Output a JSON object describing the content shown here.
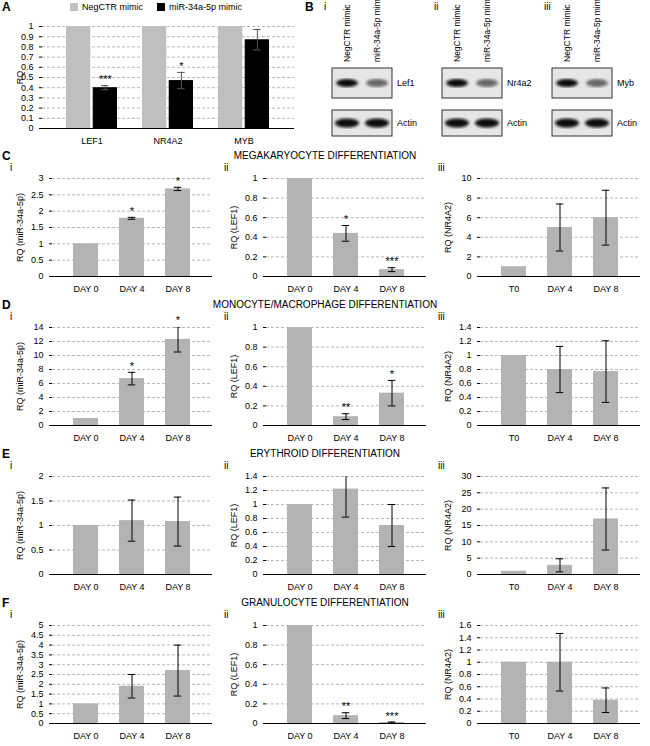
{
  "chart_data": {
    "type": "bar",
    "panel": "A",
    "categories": [
      "LEF1",
      "NR4A2",
      "MYB"
    ],
    "series": [
      {
        "name": "NegCTR mimic",
        "color": "#bfbfbf",
        "values": [
          1,
          1,
          1
        ],
        "errors": [
          null,
          null,
          null
        ],
        "significance": [
          null,
          null,
          null
        ]
      },
      {
        "name": "miR-34a-5p mimic",
        "color": "#000000",
        "values": [
          0.4,
          0.47,
          0.87
        ],
        "errors": [
          0.02,
          0.08,
          0.1
        ],
        "significance": [
          "***",
          "*",
          null
        ]
      }
    ],
    "ylabel": "RQ",
    "ylim": [
      0,
      1
    ],
    "yticks": [
      0,
      0.1,
      0.2,
      0.3,
      0.4,
      0.5,
      0.6,
      0.7,
      0.8,
      0.9,
      1
    ],
    "grid": true,
    "legend": "top"
  },
  "blots": {
    "panel": "B",
    "lanes": [
      "NegCTR mimic",
      "miR-34a-5p mimic"
    ],
    "panels": [
      {
        "panel": "i",
        "target": "Lef1",
        "control": "Actin"
      },
      {
        "panel": "ii",
        "target": "Nr4a2",
        "control": "Actin"
      },
      {
        "panel": "iii",
        "target": "Myb",
        "control": "Actin"
      }
    ]
  },
  "sections": [
    {
      "panel": "C",
      "title": "MEGAKARYOCYTE DIFFERENTIATION",
      "charts": [
        {
          "type": "bar",
          "panel": "i",
          "categories": [
            "DAY 0",
            "DAY 4",
            "DAY 8"
          ],
          "values": [
            1,
            1.78,
            2.68
          ],
          "errors": [
            null,
            0.03,
            0.05
          ],
          "significance": [
            null,
            "*",
            "*"
          ],
          "ylabel": "RQ (miR-34a-5p)",
          "ylim": [
            0,
            3
          ],
          "yticks": [
            0,
            0.5,
            1,
            1.5,
            2,
            2.5,
            3
          ],
          "grid": true,
          "color": "#b3b3b3"
        },
        {
          "type": "bar",
          "panel": "ii",
          "categories": [
            "DAY 0",
            "DAY 4",
            "DAY 8"
          ],
          "values": [
            1,
            0.44,
            0.07
          ],
          "errors": [
            null,
            0.08,
            0.02
          ],
          "significance": [
            null,
            "*",
            "***"
          ],
          "ylabel": "RQ (LEF1)",
          "ylim": [
            0,
            1
          ],
          "yticks": [
            0,
            0.2,
            0.4,
            0.6,
            0.8,
            1
          ],
          "grid": true,
          "color": "#b3b3b3"
        },
        {
          "type": "bar",
          "panel": "iii",
          "categories": [
            "T0",
            "DAY 4",
            "DAY 8"
          ],
          "values": [
            1,
            5,
            6
          ],
          "errors": [
            null,
            2.4,
            2.8
          ],
          "significance": [
            null,
            null,
            null
          ],
          "ylabel": "RQ (NR4A2)",
          "ylim": [
            0,
            10
          ],
          "yticks": [
            0,
            2,
            4,
            6,
            8,
            10
          ],
          "grid": true,
          "color": "#b3b3b3"
        }
      ]
    },
    {
      "panel": "D",
      "title": "MONOCYTE/MACROPHAGE DIFFERENTIATION",
      "charts": [
        {
          "type": "bar",
          "panel": "i",
          "categories": [
            "DAY 0",
            "DAY 4",
            "DAY 8"
          ],
          "values": [
            1,
            6.7,
            12.3
          ],
          "errors": [
            null,
            0.9,
            1.8
          ],
          "significance": [
            null,
            "*",
            "*"
          ],
          "ylabel": "RQ (miR-34a-5p)",
          "ylim": [
            0,
            14
          ],
          "yticks": [
            0,
            2,
            4,
            6,
            8,
            10,
            12,
            14
          ],
          "grid": true,
          "color": "#b3b3b3"
        },
        {
          "type": "bar",
          "panel": "ii",
          "categories": [
            "DAY 0",
            "DAY 4",
            "DAY 8"
          ],
          "values": [
            1,
            0.09,
            0.33
          ],
          "errors": [
            null,
            0.03,
            0.13
          ],
          "significance": [
            null,
            "**",
            "*"
          ],
          "ylabel": "RQ (LEF1)",
          "ylim": [
            0,
            1
          ],
          "yticks": [
            0,
            0.2,
            0.4,
            0.6,
            0.8,
            1
          ],
          "grid": true,
          "color": "#b3b3b3"
        },
        {
          "type": "bar",
          "panel": "iii",
          "categories": [
            "T0",
            "DAY 4",
            "DAY 8"
          ],
          "values": [
            1,
            0.8,
            0.77
          ],
          "errors": [
            null,
            0.33,
            0.44
          ],
          "significance": [
            null,
            null,
            null
          ],
          "ylabel": "RQ (NR4A2)",
          "ylim": [
            0,
            1.4
          ],
          "yticks": [
            0,
            0.2,
            0.4,
            0.6,
            0.8,
            1,
            1.2,
            1.4
          ],
          "grid": true,
          "color": "#b3b3b3"
        }
      ]
    },
    {
      "panel": "E",
      "title": "ERYTHROID DIFFERENTIATION",
      "charts": [
        {
          "type": "bar",
          "panel": "i",
          "categories": [
            "DAY 0",
            "DAY 4",
            "DAY 8"
          ],
          "values": [
            1,
            1.1,
            1.08
          ],
          "errors": [
            null,
            0.42,
            0.5
          ],
          "significance": [
            null,
            null,
            null
          ],
          "ylabel": "RQ (miR-34a-5p)",
          "ylim": [
            0,
            2
          ],
          "yticks": [
            0,
            0.5,
            1,
            1.5,
            2
          ],
          "grid": true,
          "color": "#b3b3b3"
        },
        {
          "type": "bar",
          "panel": "ii",
          "categories": [
            "DAY 0",
            "DAY 4",
            "DAY 8"
          ],
          "values": [
            1,
            1.22,
            0.7
          ],
          "errors": [
            null,
            0.4,
            0.3
          ],
          "significance": [
            null,
            null,
            null
          ],
          "ylabel": "RQ (LEF1)",
          "ylim": [
            0,
            1.4
          ],
          "yticks": [
            0,
            0.2,
            0.4,
            0.6,
            0.8,
            1,
            1.2,
            1.4
          ],
          "grid": true,
          "color": "#b3b3b3"
        },
        {
          "type": "bar",
          "panel": "iii",
          "categories": [
            "T0",
            "DAY 4",
            "DAY 8"
          ],
          "values": [
            1,
            2.8,
            17
          ],
          "errors": [
            null,
            2,
            9.5
          ],
          "significance": [
            null,
            null,
            null
          ],
          "ylabel": "RQ (NR4A2)",
          "ylim": [
            0,
            30
          ],
          "yticks": [
            0,
            5,
            10,
            15,
            20,
            25,
            30
          ],
          "grid": true,
          "color": "#b3b3b3"
        }
      ]
    },
    {
      "panel": "F",
      "title": "GRANULOCYTE DIFFERENTIATION",
      "charts": [
        {
          "type": "bar",
          "panel": "i",
          "categories": [
            "DAY 0",
            "DAY 4",
            "DAY 8"
          ],
          "values": [
            1,
            1.9,
            2.7
          ],
          "errors": [
            null,
            0.6,
            1.3
          ],
          "significance": [
            null,
            null,
            null
          ],
          "ylabel": "RQ (miR-34a-5p)",
          "ylim": [
            0,
            5
          ],
          "yticks": [
            0,
            0.5,
            1,
            1.5,
            2,
            2.5,
            3,
            3.5,
            4,
            4.5,
            5
          ],
          "grid": true,
          "color": "#b3b3b3"
        },
        {
          "type": "bar",
          "panel": "ii",
          "categories": [
            "DAY 0",
            "DAY 4",
            "DAY 8"
          ],
          "values": [
            1,
            0.08,
            0.01
          ],
          "errors": [
            null,
            0.03,
            0.005
          ],
          "significance": [
            null,
            "**",
            "***"
          ],
          "ylabel": "RQ (LEF1)",
          "ylim": [
            0,
            1
          ],
          "yticks": [
            0,
            0.2,
            0.4,
            0.6,
            0.8,
            1
          ],
          "grid": true,
          "color": "#b3b3b3"
        },
        {
          "type": "bar",
          "panel": "iii",
          "categories": [
            "T0",
            "DAY 4",
            "DAY 8"
          ],
          "values": [
            1,
            1,
            0.38
          ],
          "errors": [
            null,
            0.47,
            0.2
          ],
          "significance": [
            null,
            null,
            null
          ],
          "ylabel": "RQ (NR4A2)",
          "ylim": [
            0,
            1.6
          ],
          "yticks": [
            0,
            0.2,
            0.4,
            0.6,
            0.8,
            1,
            1.2,
            1.4,
            1.6
          ],
          "grid": true,
          "color": "#b3b3b3"
        }
      ]
    }
  ]
}
